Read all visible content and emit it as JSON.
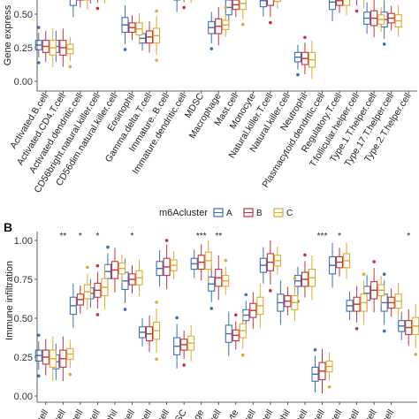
{
  "panel_b_label": "B",
  "legend": {
    "title": "m6Acluster",
    "entries": [
      "A",
      "B",
      "C"
    ]
  },
  "colors": {
    "A": "#3b6fb6",
    "B": "#c8303a",
    "C": "#e0a92e"
  },
  "chart_data": [
    {
      "type": "box",
      "panel": "A",
      "ylabel": "Gene express",
      "yticks": [
        "0.00",
        "0.25",
        "0.50"
      ],
      "ylim": [
        0,
        0.72
      ],
      "categories": [
        "Activated.B.cell",
        "Activated.CD4.T.cell",
        "Activated.dendritic.cell",
        "CD56bright.natural.killer.cell",
        "CD56dim.natural.killer.cell",
        "Eosinophil",
        "Gamma.delta.T.cell",
        "Immature..B.cell",
        "Immature.dendritic.cell",
        "MDSC",
        "Macrophage",
        "Mast.cell",
        "Monocyte",
        "Natural.killer.T.cell",
        "Natural.killer.cell",
        "Neutrophil",
        "Plasmacytoid.dendritic.cell",
        "Regulatory.T.cell",
        "T.follicular.helper.cell",
        "Type.1.T.helper.cell",
        "Type.17.T.helper.cell",
        "Type.2.T.helper.cell"
      ],
      "series": [
        {
          "name": "A",
          "median": [
            0.27,
            0.26,
            0.62,
            0.67,
            null,
            0.42,
            0.32,
            null,
            0.66,
            null,
            0.4,
            0.55,
            null,
            0.6,
            null,
            0.18,
            null,
            0.59,
            0.66,
            0.47,
            0.46,
            null
          ]
        },
        {
          "name": "B",
          "median": [
            0.26,
            0.25,
            0.64,
            0.7,
            null,
            0.4,
            0.33,
            null,
            0.68,
            null,
            0.41,
            0.57,
            null,
            0.62,
            null,
            0.17,
            null,
            0.6,
            0.68,
            0.47,
            0.47,
            null
          ]
        },
        {
          "name": "C",
          "median": [
            0.25,
            0.24,
            0.65,
            0.72,
            null,
            0.39,
            0.34,
            null,
            0.7,
            null,
            0.42,
            0.58,
            null,
            0.63,
            null,
            0.16,
            null,
            0.61,
            0.69,
            0.46,
            0.45,
            null
          ]
        }
      ]
    },
    {
      "type": "box",
      "panel": "B",
      "ylabel": "Immune infiltration",
      "yticks": [
        "0.00",
        "0.25",
        "0.50",
        "0.75",
        "1.00"
      ],
      "ylim": [
        0,
        1.0
      ],
      "significance": [
        "",
        "**",
        "*",
        "*",
        "",
        "*",
        "",
        "",
        "",
        "***",
        "**",
        "",
        "",
        "",
        "",
        "",
        "***",
        "*",
        "",
        "",
        "",
        "*"
      ],
      "visible_xlabels": [
        "B.cell",
        "T.cell",
        "T.cell",
        "T.cell",
        "ophil",
        "T.cell",
        "B.cell",
        "l.cell",
        "DSC",
        "hage",
        "t.cell",
        "ocyte",
        "T.cell",
        "r.cell",
        "ophil",
        "d.cell",
        "T.cell",
        "r.cell",
        "r.cell",
        "r.cell",
        "r.cell"
      ],
      "series": [
        {
          "name": "A",
          "median": [
            0.26,
            0.22,
            0.58,
            0.66,
            0.8,
            0.74,
            0.41,
            0.82,
            0.32,
            0.85,
            0.72,
            0.4,
            0.52,
            0.84,
            0.6,
            0.74,
            0.14,
            0.84,
            0.58,
            0.66,
            0.6,
            0.45
          ]
        },
        {
          "name": "B",
          "median": [
            0.25,
            0.24,
            0.62,
            0.68,
            0.81,
            0.75,
            0.4,
            0.83,
            0.33,
            0.86,
            0.76,
            0.39,
            0.55,
            0.86,
            0.61,
            0.75,
            0.16,
            0.86,
            0.59,
            0.68,
            0.6,
            0.44
          ]
        },
        {
          "name": "C",
          "median": [
            0.24,
            0.27,
            0.67,
            0.7,
            0.82,
            0.76,
            0.42,
            0.84,
            0.34,
            0.87,
            0.74,
            0.42,
            0.58,
            0.87,
            0.6,
            0.76,
            0.19,
            0.87,
            0.6,
            0.68,
            0.61,
            0.45
          ]
        }
      ]
    }
  ]
}
